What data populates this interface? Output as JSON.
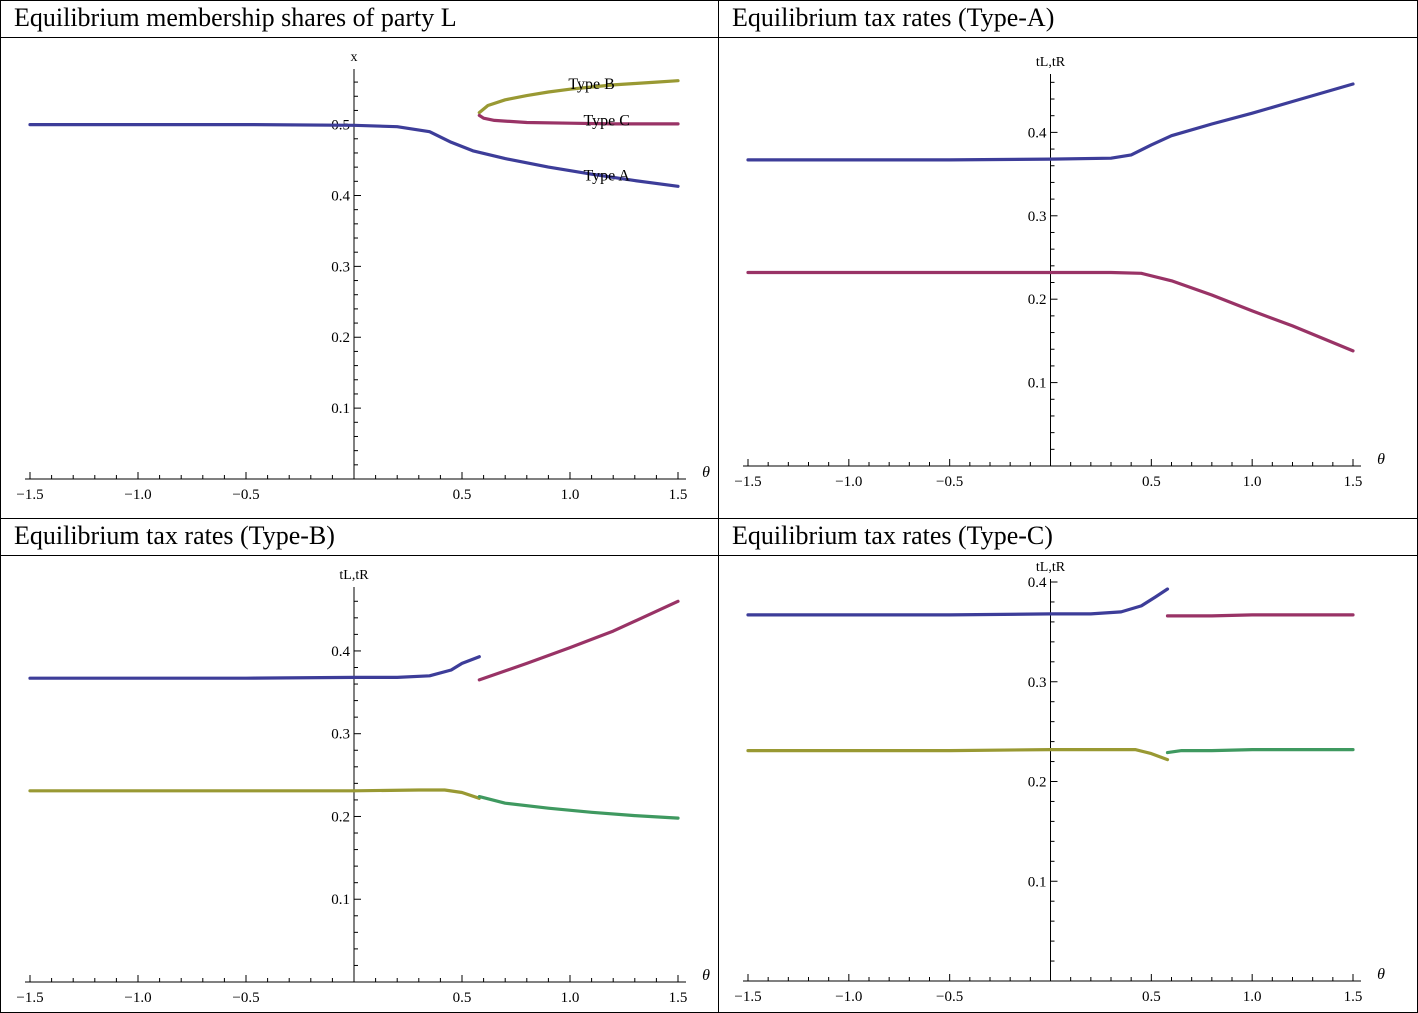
{
  "colors": {
    "blue": "#3d3d99",
    "magenta": "#993366",
    "olive": "#999933",
    "green": "#3f9960"
  },
  "chart_data": [
    {
      "type": "line",
      "title": "Equilibrium membership shares of party L",
      "xlabel": "θ",
      "ylabel": "x",
      "xlim": [
        -1.5,
        1.5
      ],
      "ylim": [
        0,
        0.57
      ],
      "xticks": [
        -1.5,
        -1.0,
        -0.5,
        0.5,
        1.0,
        1.5
      ],
      "xtick_labels": [
        "−1.5",
        "−1.0",
        "−0.5",
        "0.5",
        "1.0",
        "1.5"
      ],
      "yticks": [
        0.1,
        0.2,
        0.3,
        0.4,
        0.5
      ],
      "ytick_labels": [
        "0.1",
        "0.2",
        "0.3",
        "0.4",
        "0.5"
      ],
      "series": [
        {
          "name": "Type A",
          "color": "blue",
          "x": [
            -1.5,
            -1.0,
            -0.5,
            0.0,
            0.2,
            0.35,
            0.45,
            0.55,
            0.7,
            0.9,
            1.1,
            1.3,
            1.5
          ],
          "y": [
            0.5,
            0.5,
            0.5,
            0.499,
            0.497,
            0.49,
            0.475,
            0.463,
            0.452,
            0.44,
            0.43,
            0.421,
            0.413
          ]
        },
        {
          "name": "Type B",
          "color": "olive",
          "x": [
            0.58,
            0.62,
            0.7,
            0.8,
            0.9,
            1.0,
            1.1,
            1.2,
            1.3,
            1.4,
            1.5
          ],
          "y": [
            0.517,
            0.527,
            0.535,
            0.541,
            0.546,
            0.55,
            0.553,
            0.556,
            0.558,
            0.56,
            0.562
          ]
        },
        {
          "name": "Type C",
          "color": "magenta",
          "x": [
            0.58,
            0.6,
            0.65,
            0.7,
            0.8,
            1.0,
            1.2,
            1.5
          ],
          "y": [
            0.513,
            0.509,
            0.506,
            0.505,
            0.503,
            0.502,
            0.501,
            0.501
          ]
        }
      ],
      "annotations": [
        {
          "text": "Type B",
          "x": 1.1,
          "y": 0.557
        },
        {
          "text": "Type C",
          "x": 1.17,
          "y": 0.506
        },
        {
          "text": "Type A",
          "x": 1.17,
          "y": 0.428
        }
      ]
    },
    {
      "type": "line",
      "title": "Equilibrium tax rates (Type-A)",
      "xlabel": "θ",
      "ylabel": "tL,tR",
      "xlim": [
        -1.5,
        1.5
      ],
      "ylim": [
        0,
        0.47
      ],
      "xticks": [
        -1.5,
        -1.0,
        -0.5,
        0.5,
        1.0,
        1.5
      ],
      "xtick_labels": [
        "−1.5",
        "−1.0",
        "−0.5",
        "0.5",
        "1.0",
        "1.5"
      ],
      "yticks": [
        0.1,
        0.2,
        0.3,
        0.4
      ],
      "ytick_labels": [
        "0.1",
        "0.2",
        "0.3",
        "0.4"
      ],
      "series": [
        {
          "color": "blue",
          "x": [
            -1.5,
            -1.0,
            -0.5,
            0.0,
            0.3,
            0.4,
            0.5,
            0.6,
            0.8,
            1.0,
            1.2,
            1.5
          ],
          "y": [
            0.367,
            0.367,
            0.367,
            0.368,
            0.369,
            0.373,
            0.385,
            0.396,
            0.41,
            0.423,
            0.437,
            0.458
          ]
        },
        {
          "color": "magenta",
          "x": [
            -1.5,
            -1.0,
            -0.5,
            0.0,
            0.3,
            0.45,
            0.6,
            0.8,
            1.0,
            1.2,
            1.5
          ],
          "y": [
            0.232,
            0.232,
            0.232,
            0.232,
            0.232,
            0.231,
            0.222,
            0.205,
            0.186,
            0.168,
            0.138
          ]
        }
      ]
    },
    {
      "type": "line",
      "title": "Equilibrium tax rates (Type-B)",
      "xlabel": "θ",
      "ylabel": "tL,tR",
      "xlim": [
        -1.5,
        1.5
      ],
      "ylim": [
        0,
        0.47
      ],
      "xticks": [
        -1.5,
        -1.0,
        -0.5,
        0.5,
        1.0,
        1.5
      ],
      "xtick_labels": [
        "−1.5",
        "−1.0",
        "−0.5",
        "0.5",
        "1.0",
        "1.5"
      ],
      "yticks": [
        0.1,
        0.2,
        0.3,
        0.4
      ],
      "ytick_labels": [
        "0.1",
        "0.2",
        "0.3",
        "0.4"
      ],
      "series": [
        {
          "color": "blue",
          "x": [
            -1.5,
            -1.0,
            -0.5,
            0.0,
            0.2,
            0.35,
            0.45,
            0.5,
            0.58
          ],
          "y": [
            0.367,
            0.367,
            0.367,
            0.368,
            0.368,
            0.37,
            0.377,
            0.385,
            0.393
          ]
        },
        {
          "color": "magenta",
          "x": [
            0.58,
            0.8,
            1.0,
            1.2,
            1.5
          ],
          "y": [
            0.365,
            0.385,
            0.404,
            0.424,
            0.46
          ]
        },
        {
          "color": "olive",
          "x": [
            -1.5,
            -1.0,
            -0.5,
            0.0,
            0.3,
            0.42,
            0.5,
            0.58
          ],
          "y": [
            0.231,
            0.231,
            0.231,
            0.231,
            0.232,
            0.232,
            0.229,
            0.222
          ]
        },
        {
          "color": "green",
          "x": [
            0.58,
            0.7,
            0.9,
            1.1,
            1.3,
            1.5
          ],
          "y": [
            0.224,
            0.216,
            0.21,
            0.205,
            0.201,
            0.198
          ]
        }
      ]
    },
    {
      "type": "line",
      "title": "Equilibrium tax rates (Type-C)",
      "xlabel": "θ",
      "ylabel": "tL,tR",
      "xlim": [
        -1.5,
        1.5
      ],
      "ylim": [
        0,
        0.4
      ],
      "xticks": [
        -1.5,
        -1.0,
        -0.5,
        0.5,
        1.0,
        1.5
      ],
      "xtick_labels": [
        "−1.5",
        "−1.0",
        "−0.5",
        "0.5",
        "1.0",
        "1.5"
      ],
      "yticks": [
        0.1,
        0.2,
        0.3,
        0.4
      ],
      "ytick_labels": [
        "0.1",
        "0.2",
        "0.3",
        "0.4"
      ],
      "series": [
        {
          "color": "blue",
          "x": [
            -1.5,
            -1.0,
            -0.5,
            0.0,
            0.2,
            0.35,
            0.45,
            0.52,
            0.58
          ],
          "y": [
            0.367,
            0.367,
            0.367,
            0.368,
            0.368,
            0.37,
            0.376,
            0.385,
            0.393
          ]
        },
        {
          "color": "magenta",
          "x": [
            0.58,
            0.8,
            1.0,
            1.2,
            1.5
          ],
          "y": [
            0.366,
            0.366,
            0.367,
            0.367,
            0.367
          ]
        },
        {
          "color": "olive",
          "x": [
            -1.5,
            -1.0,
            -0.5,
            0.0,
            0.3,
            0.42,
            0.5,
            0.58
          ],
          "y": [
            0.231,
            0.231,
            0.231,
            0.232,
            0.232,
            0.232,
            0.228,
            0.222
          ]
        },
        {
          "color": "green",
          "x": [
            0.58,
            0.65,
            0.8,
            1.0,
            1.2,
            1.5
          ],
          "y": [
            0.229,
            0.231,
            0.231,
            0.232,
            0.232,
            0.232
          ]
        }
      ]
    }
  ]
}
